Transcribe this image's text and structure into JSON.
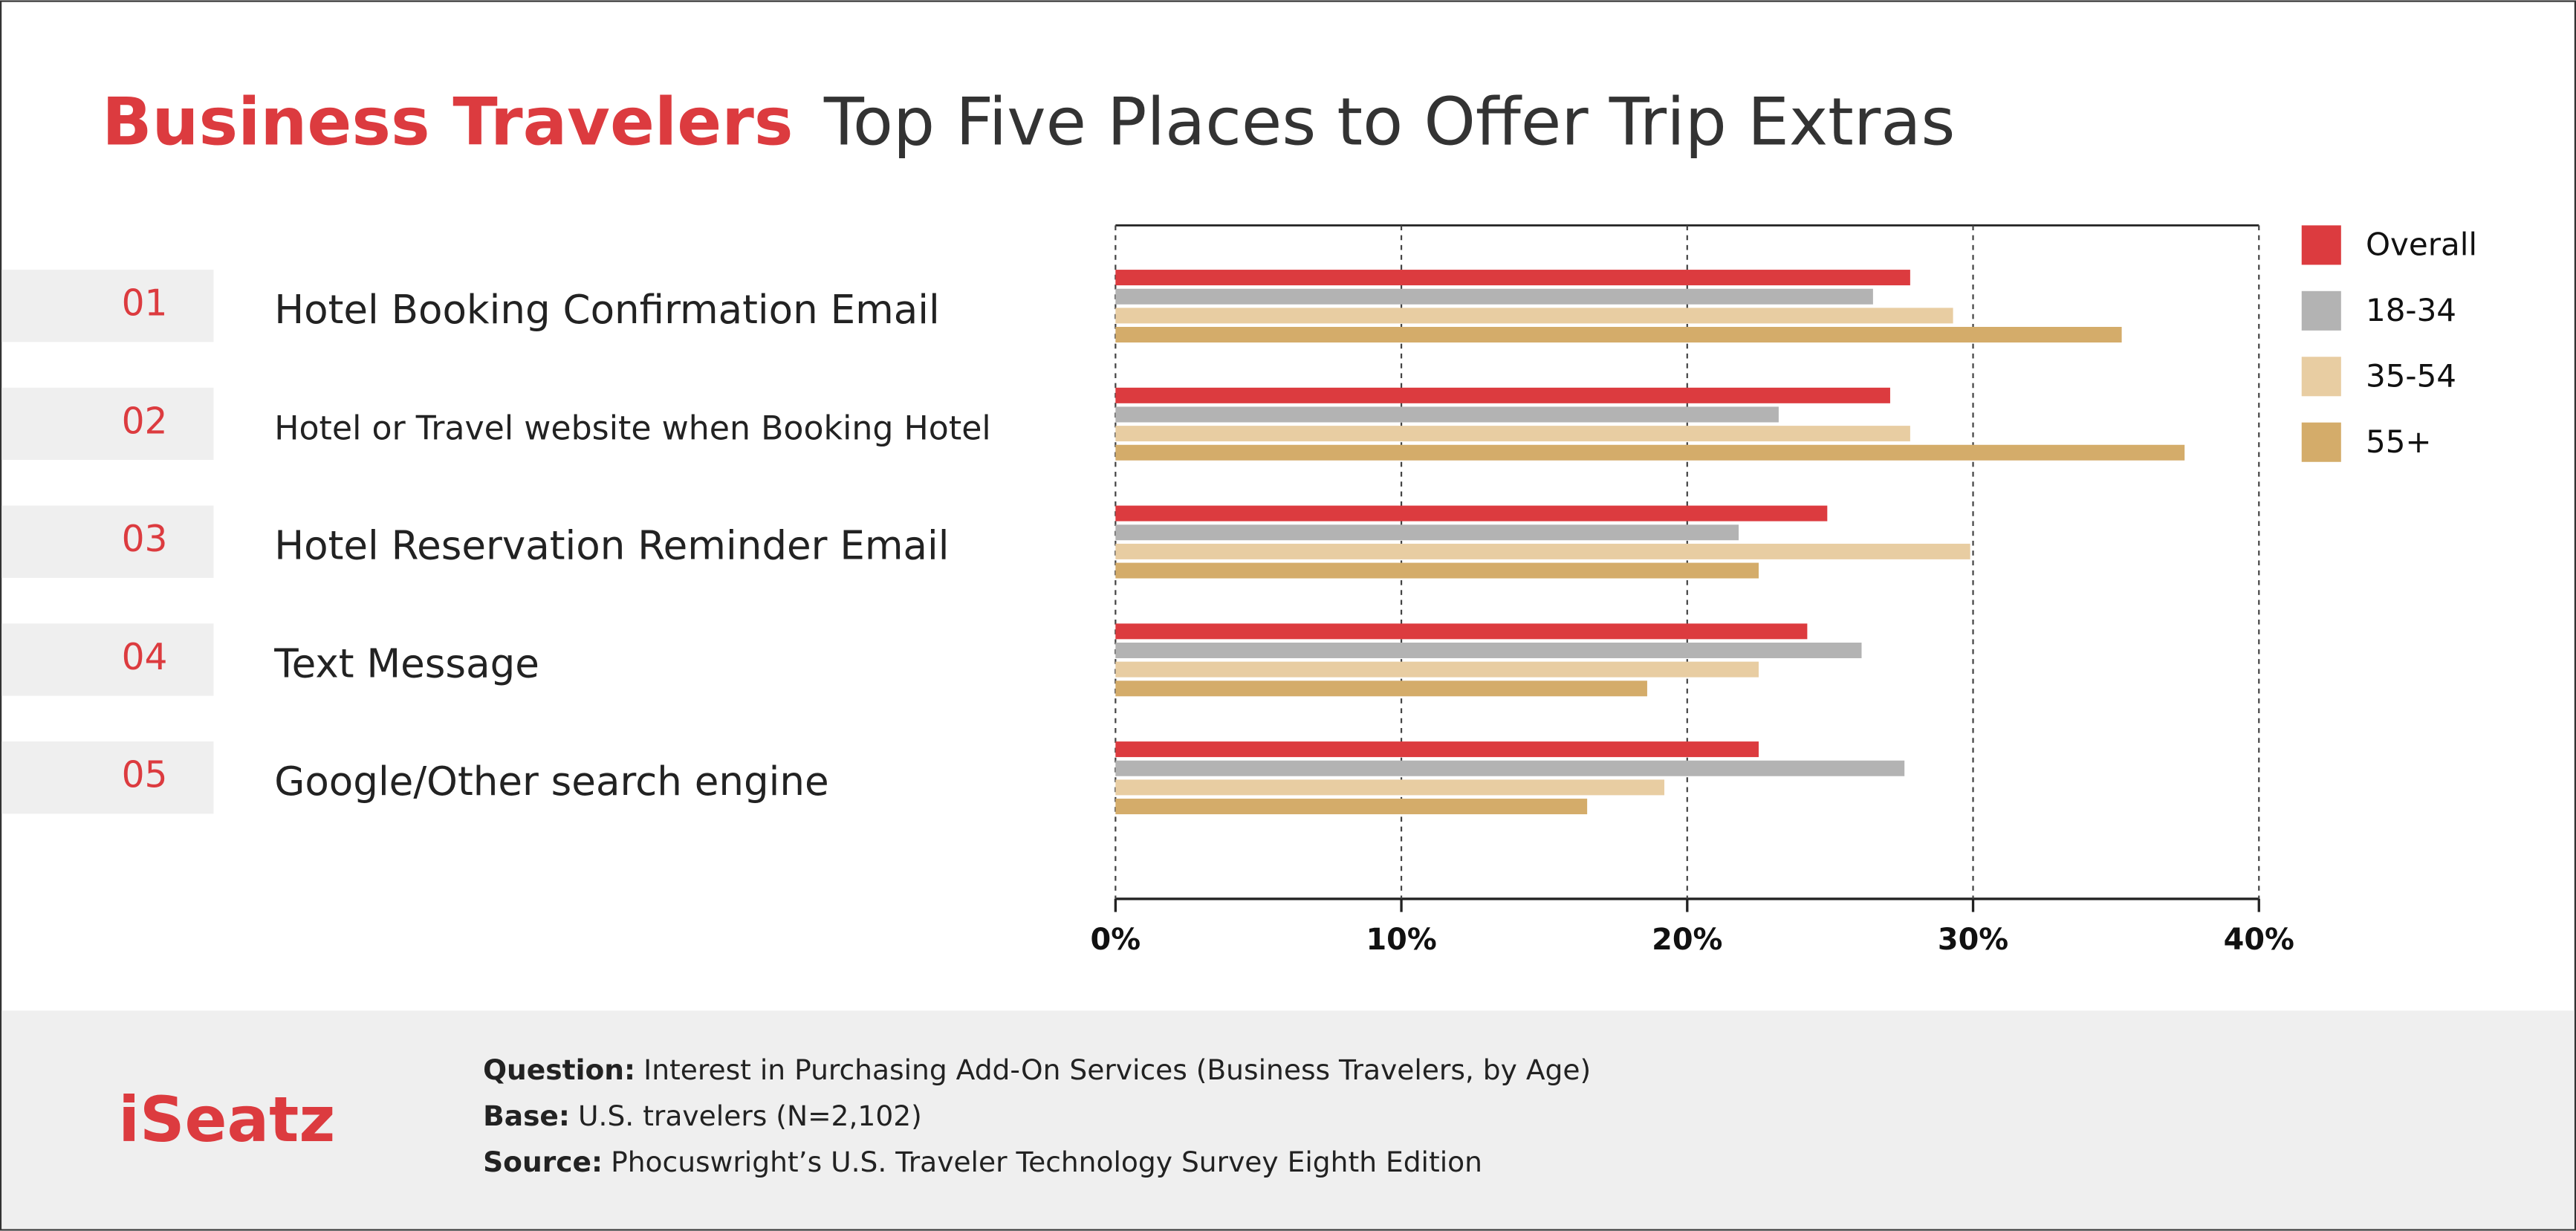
{
  "chart_data": {
    "type": "bar",
    "orientation": "horizontal",
    "title_highlight": "Business Travelers",
    "title": "Top Five Places to Offer Trip Extras",
    "ranks": [
      "01",
      "02",
      "03",
      "04",
      "05"
    ],
    "categories": [
      "Hotel Booking Confirmation Email",
      "Hotel or Travel website when Booking Hotel",
      "Hotel Reservation Reminder Email",
      "Text Message",
      "Google/Other search engine"
    ],
    "series": [
      {
        "name": "Overall",
        "color": "#dc3b3f",
        "values": [
          27.8,
          27.1,
          24.9,
          24.2,
          22.5
        ]
      },
      {
        "name": "18-34",
        "color": "#b3b3b3",
        "values": [
          26.5,
          23.2,
          21.8,
          26.1,
          27.6
        ]
      },
      {
        "name": "35-54",
        "color": "#e8cda2",
        "values": [
          29.3,
          27.8,
          29.9,
          22.5,
          19.2
        ]
      },
      {
        "name": "55+",
        "color": "#d4ac6a",
        "values": [
          35.2,
          37.4,
          22.5,
          18.6,
          16.5
        ]
      }
    ],
    "xlim": [
      0,
      40
    ],
    "xticks": [
      {
        "value": 0,
        "label": "0%"
      },
      {
        "value": 10,
        "label": "10%"
      },
      {
        "value": 20,
        "label": "20%"
      },
      {
        "value": 30,
        "label": "30%"
      },
      {
        "value": 40,
        "label": "40%"
      }
    ],
    "grid": true,
    "legend": "right"
  },
  "footer": {
    "logo": "iSeatz",
    "notes": [
      {
        "label": "Question:",
        "text": "Interest in Purchasing Add-On Services (Business Travelers, by Age)"
      },
      {
        "label": "Base:",
        "text": "U.S. travelers (N=2,102)"
      },
      {
        "label": "Source:",
        "text": "Phocuswright’s U.S. Traveler Technology Survey Eighth Edition"
      }
    ]
  }
}
